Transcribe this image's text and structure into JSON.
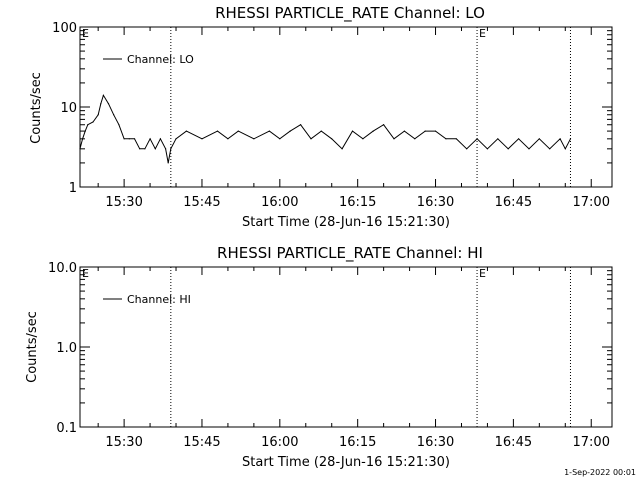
{
  "chart_data": [
    {
      "type": "line",
      "title": "RHESSI PARTICLE_RATE Channel: LO",
      "xlabel": "Start Time (28-Jun-16 15:21:30)",
      "ylabel": "Counts/sec",
      "yscale": "log",
      "ylim": [
        1,
        100
      ],
      "xlim": [
        "15:21:30",
        "17:04:00"
      ],
      "ytick_labels": [
        "1",
        "10",
        "100"
      ],
      "ytick_values": [
        1,
        10,
        100
      ],
      "xtick_labels": [
        "15:30",
        "15:45",
        "16:00",
        "16:15",
        "16:30",
        "16:45",
        "17:00"
      ],
      "xtick_values": [
        "15:30",
        "15:45",
        "16:00",
        "16:15",
        "16:30",
        "16:45",
        "17:00"
      ],
      "vlines": [
        "15:39",
        "16:38",
        "16:56"
      ],
      "annotations": [
        {
          "text": "E",
          "x": "15:21:30"
        },
        {
          "text": "E",
          "x": "16:38"
        }
      ],
      "legend": {
        "label": "Channel: LO",
        "placement": "top-left"
      },
      "grid": false,
      "series": [
        {
          "name": "Channel: LO",
          "x": [
            "15:21:30",
            "15:22",
            "15:22:30",
            "15:23",
            "15:24",
            "15:25",
            "15:25:30",
            "15:26",
            "15:27",
            "15:28",
            "15:29",
            "15:30",
            "15:31",
            "15:32",
            "15:33",
            "15:34",
            "15:35",
            "15:36",
            "15:37",
            "15:38",
            "15:38:30",
            "15:39",
            "15:40",
            "15:42",
            "15:45",
            "15:48",
            "15:50",
            "15:52",
            "15:55",
            "15:58",
            "16:00",
            "16:02",
            "16:04",
            "16:06",
            "16:08",
            "16:10",
            "16:12",
            "16:14",
            "16:16",
            "16:18",
            "16:20",
            "16:22",
            "16:24",
            "16:26",
            "16:28",
            "16:30",
            "16:32",
            "16:34",
            "16:36",
            "16:38",
            "16:40",
            "16:42",
            "16:44",
            "16:46",
            "16:48",
            "16:50",
            "16:52",
            "16:54",
            "16:55",
            "16:56"
          ],
          "values": [
            3,
            4,
            5,
            6,
            6.5,
            8,
            11,
            14,
            11,
            8,
            6,
            4,
            4,
            4,
            3,
            3,
            4,
            3,
            4,
            3,
            2,
            3,
            4,
            5,
            4,
            5,
            4,
            5,
            4,
            5,
            4,
            5,
            6,
            4,
            5,
            4,
            3,
            5,
            4,
            5,
            6,
            4,
            5,
            4,
            5,
            5,
            4,
            4,
            3,
            4,
            3,
            4,
            3,
            4,
            3,
            4,
            3,
            4,
            3,
            4
          ]
        }
      ]
    },
    {
      "type": "line",
      "title": "RHESSI PARTICLE_RATE Channel: HI",
      "xlabel": "Start Time (28-Jun-16 15:21:30)",
      "ylabel": "Counts/sec",
      "yscale": "log",
      "ylim": [
        0.1,
        10
      ],
      "xlim": [
        "15:21:30",
        "17:04:00"
      ],
      "ytick_labels": [
        "0.1",
        "1.0",
        "10.0"
      ],
      "ytick_values": [
        0.1,
        1,
        10
      ],
      "xtick_labels": [
        "15:30",
        "15:45",
        "16:00",
        "16:15",
        "16:30",
        "16:45",
        "17:00"
      ],
      "xtick_values": [
        "15:30",
        "15:45",
        "16:00",
        "16:15",
        "16:30",
        "16:45",
        "17:00"
      ],
      "vlines": [
        "15:39",
        "16:38",
        "16:56"
      ],
      "annotations": [
        {
          "text": "E",
          "x": "15:21:30"
        },
        {
          "text": "E",
          "x": "16:38"
        }
      ],
      "legend": {
        "label": "Channel: HI",
        "placement": "top-left"
      },
      "grid": false,
      "series": [
        {
          "name": "Channel: HI",
          "x": [],
          "values": []
        }
      ]
    }
  ],
  "footer": {
    "timestamp": "1-Sep-2022 00:01"
  }
}
